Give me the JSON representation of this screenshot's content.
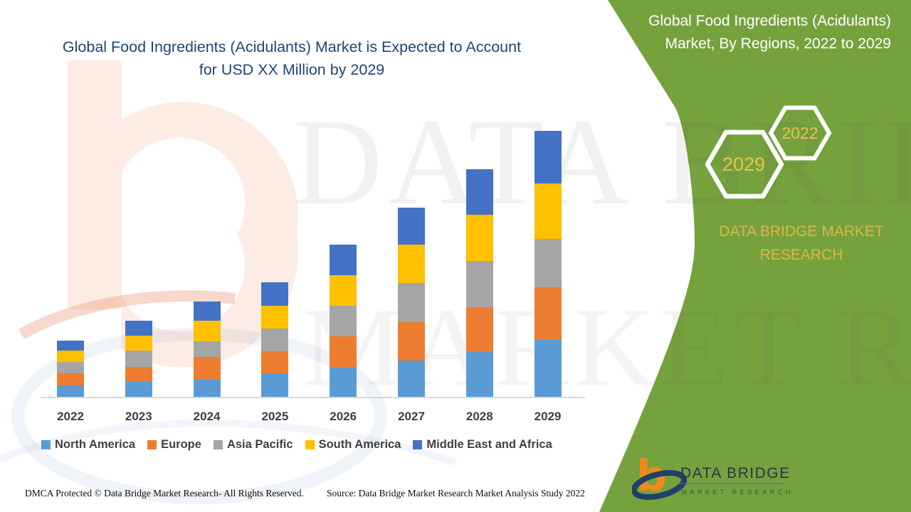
{
  "main_title": "Global Food Ingredients (Acidulants) Market is Expected to Account for USD XX Million by 2029",
  "side_panel": {
    "bg_color": "#76A23E",
    "title": "Global Food Ingredients (Acidulants) Market, By Regions, 2022 to 2029",
    "hexagons": [
      {
        "label": "2029"
      },
      {
        "label": "2022"
      }
    ],
    "brand_text": "DATA BRIDGE MARKET RESEARCH",
    "accent_text_color": "#DCB64B"
  },
  "chart_data": {
    "type": "bar",
    "stacked": true,
    "title": "Global Food Ingredients (Acidulants) Market is Expected to Account for USD XX Million by 2029",
    "subtitle": "Global Food Ingredients (Acidulants) Market, By Regions, 2022 to 2029",
    "categories": [
      "2022",
      "2023",
      "2024",
      "2025",
      "2026",
      "2027",
      "2028",
      "2029"
    ],
    "series": [
      {
        "name": "North America",
        "color": "#5B9BD5",
        "values": [
          16,
          21,
          24,
          33,
          41,
          51,
          63,
          80
        ]
      },
      {
        "name": "Europe",
        "color": "#ED7D31",
        "values": [
          17,
          21,
          32,
          31,
          44,
          54,
          63,
          74
        ]
      },
      {
        "name": "Asia Pacific",
        "color": "#A5A5A5",
        "values": [
          16,
          23,
          22,
          32,
          43,
          55,
          65,
          68
        ]
      },
      {
        "name": "South America",
        "color": "#FFC000",
        "values": [
          16,
          21,
          29,
          32,
          43,
          54,
          65,
          78
        ]
      },
      {
        "name": "Middle East and Africa",
        "color": "#4472C4",
        "values": [
          14,
          21,
          27,
          33,
          43,
          52,
          64,
          74
        ]
      }
    ],
    "totals_by_year": [
      79,
      107,
      134,
      161,
      214,
      266,
      320,
      374
    ],
    "xlabel": "",
    "ylabel": "",
    "units": "USD Million (axis values not shown; chart states 'USD XX Million', series values are relative magnitudes read from the image)",
    "legend_position": "bottom",
    "gridlines": false,
    "y_axis_visible": false
  },
  "watermark": {
    "line1": "DATA BRIDGE",
    "line2": "MARKET RESEARCH"
  },
  "logo": {
    "name_line": "DATA BRIDGE",
    "sub_line": "MARKET RESEARCH"
  },
  "footer": {
    "dmca": "DMCA Protected © Data Bridge Market Research- All Rights Reserved.",
    "source": "Source: Data Bridge Market Research Market Analysis Study 2022"
  },
  "colors": {
    "title_navy": "#1F4571",
    "axis_label_gray": "#3F3F3F",
    "axis_line": "#D9D9D9"
  }
}
